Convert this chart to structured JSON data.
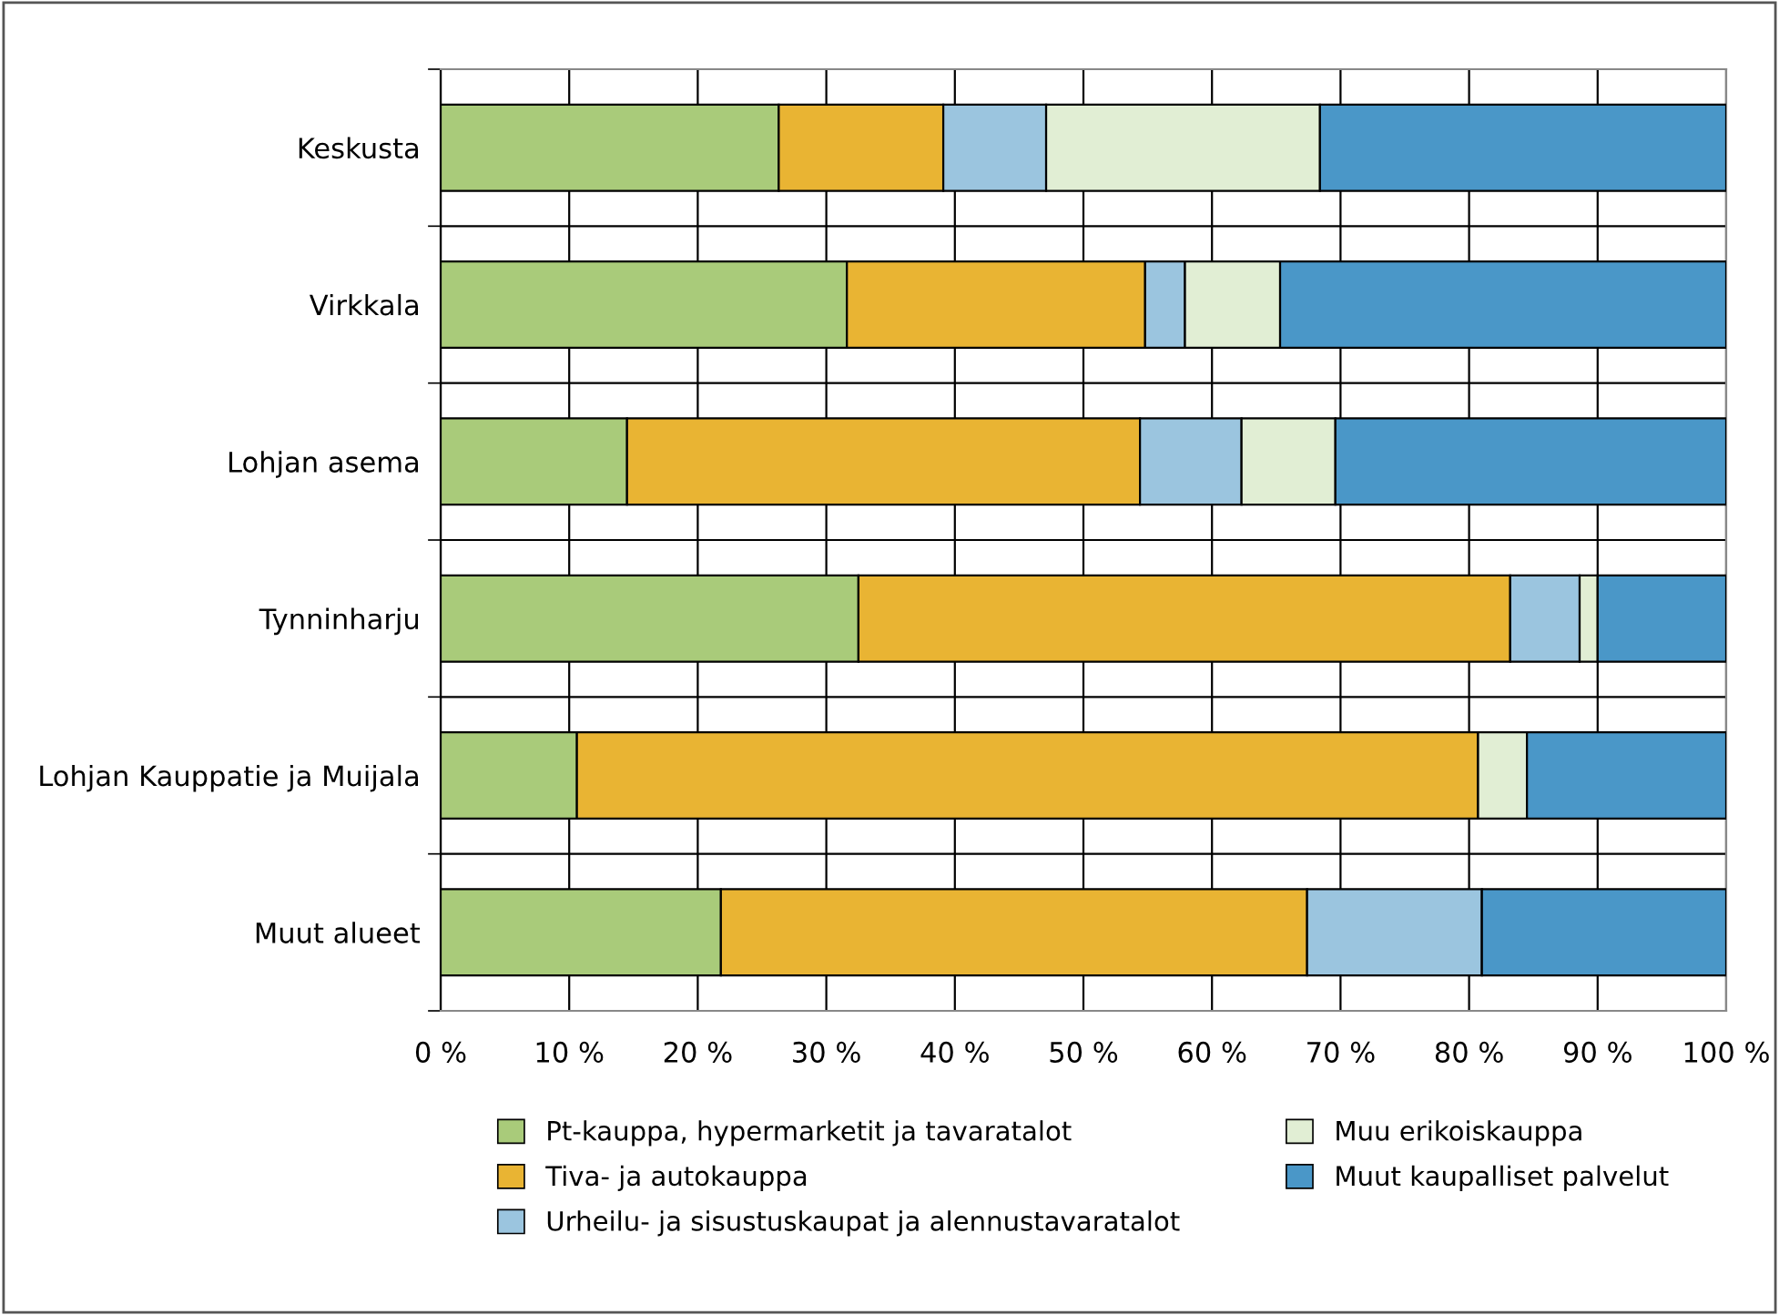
{
  "chart_data": {
    "type": "bar",
    "orientation": "horizontal",
    "stacked": true,
    "grid": true,
    "legend": "bottom",
    "categories": [
      "Keskusta",
      "Virkkala",
      "Lohjan asema",
      "Tynninharju",
      "Lohjan Kauppatie ja Muijala",
      "Muut alueet"
    ],
    "xlim": [
      0,
      100
    ],
    "xticks": [
      {
        "value": 0,
        "label": "0 %"
      },
      {
        "value": 10,
        "label": "10 %"
      },
      {
        "value": 20,
        "label": "20 %"
      },
      {
        "value": 30,
        "label": "30 %"
      },
      {
        "value": 40,
        "label": "40 %"
      },
      {
        "value": 50,
        "label": "50 %"
      },
      {
        "value": 60,
        "label": "60 %"
      },
      {
        "value": 70,
        "label": "70 %"
      },
      {
        "value": 80,
        "label": "80 %"
      },
      {
        "value": 90,
        "label": "90 %"
      },
      {
        "value": 100,
        "label": "100 %"
      }
    ],
    "series": [
      {
        "name": "Pt-kauppa, hypermarketit ja tavaratalot",
        "color": "#a9cb7a",
        "values": [
          26.3,
          31.6,
          14.5,
          32.5,
          10.6,
          21.8
        ]
      },
      {
        "name": "Tiva- ja autokauppa",
        "color": "#e9b433",
        "values": [
          12.8,
          23.2,
          39.9,
          50.7,
          70.1,
          45.6
        ]
      },
      {
        "name": "Urheilu- ja sisustuskaupat ja alennustavaratalot",
        "color": "#9bc5df",
        "values": [
          8.0,
          3.1,
          7.9,
          5.4,
          0,
          13.6
        ]
      },
      {
        "name": "Muu erikoiskauppa",
        "color": "#e1eed4",
        "values": [
          21.3,
          7.4,
          7.3,
          1.4,
          3.8,
          0
        ]
      },
      {
        "name": "Muut kaupalliset palvelut",
        "color": "#4a97c8",
        "values": [
          31.6,
          34.7,
          30.4,
          10.0,
          15.5,
          19.0
        ]
      }
    ]
  }
}
